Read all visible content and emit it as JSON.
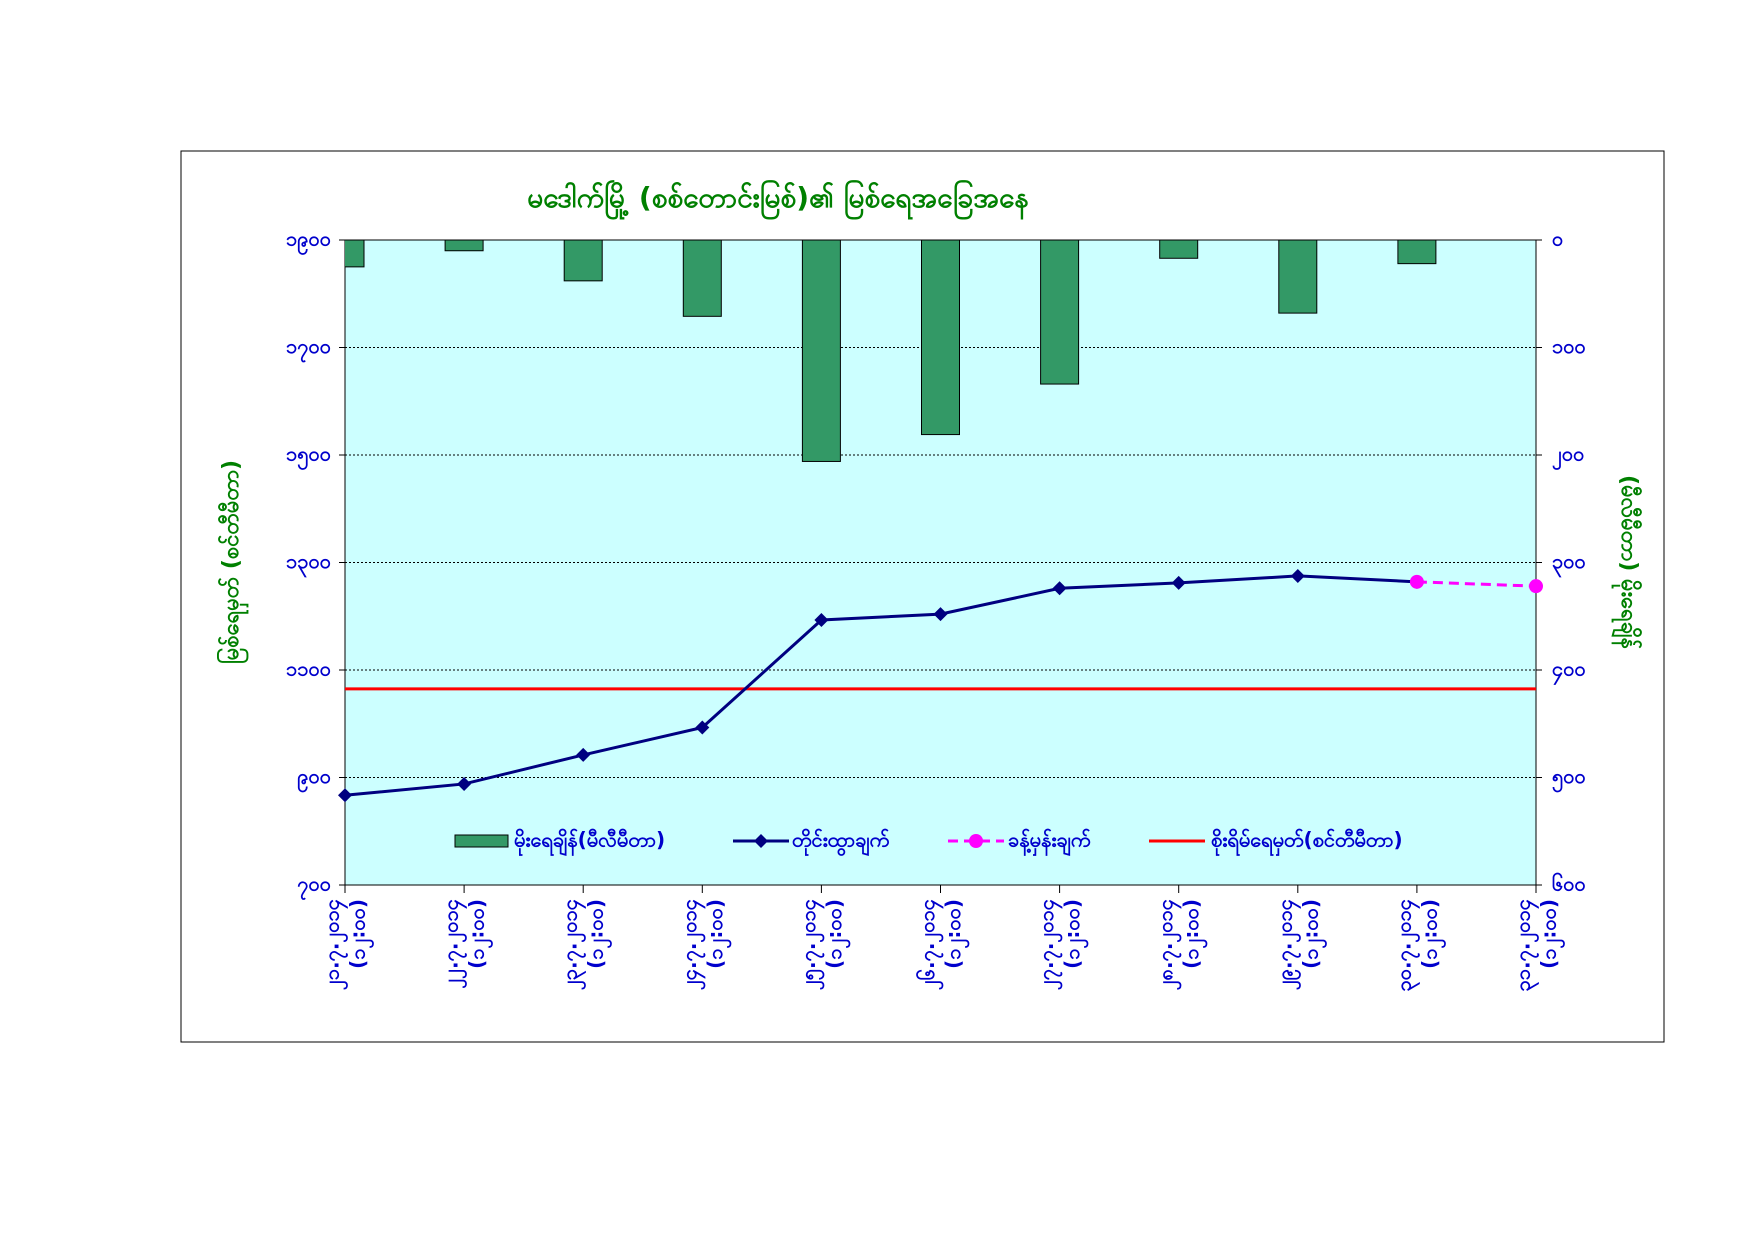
{
  "chart_data": {
    "type": "combo",
    "title": "မဒေါက်မြို့ (စစ်တောင်းမြစ်)၏ မြစ်ရေအခြေအနေ",
    "y_label": "မြစ်ရေမှတ် (စင်တီမီတာ)",
    "y2_label": "(မီလီမီတာ) မိုးရေချိန်",
    "categories": [
      "၂၁.၇.၂၀၁၄",
      "၂၂.၇.၂၀၁၄",
      "၂၃.၇.၂၀၁၄",
      "၂၄.၇.၂၀၁၄",
      "၂၅.၇.၂၀၁၄",
      "၂၆.၇.၂၀၁၄",
      "၂၇.၇.၂၀၁၄",
      "၂၈.၇.၂၀၁၄",
      "၂၉.၇.၂၀၁၄",
      "၃၀.၇.၂၀၁၄",
      "၃၁.၇.၂၀၁၄"
    ],
    "category_sublabels": [
      "(၁၂:၀၀)",
      "(၁၂:၀၀)",
      "(၁၂:၀၀)",
      "(၁၂:၀၀)",
      "(၁၂:၀၀)",
      "(၁၂:၀၀)",
      "(၁၂:၀၀)",
      "(၁၂:၀၀)",
      "(၁၂:၀၀)",
      "(၁၂:၀၀)",
      "(၁၂:၀၀)"
    ],
    "series": [
      {
        "name": "မိုးရေချိန်(မီလီမီတာ)",
        "kind": "bar",
        "axis": "y2",
        "color": "#339966",
        "values": [
          25,
          10,
          38,
          71,
          206,
          181,
          134,
          17,
          68,
          22,
          null
        ]
      },
      {
        "name": "တိုင်းထွာချက်",
        "kind": "line",
        "marker": "diamond",
        "color": "#000080",
        "values": [
          867,
          888,
          942,
          993,
          1193,
          1204,
          1252,
          1262,
          1275,
          1264,
          null
        ]
      },
      {
        "name": "ခန့်မှန်းချက်",
        "kind": "line",
        "marker": "circle",
        "dashed": true,
        "color": "#ff00ff",
        "values": [
          null,
          null,
          null,
          null,
          null,
          null,
          null,
          null,
          null,
          1264,
          1256
        ]
      }
    ],
    "danger_level": {
      "name": "စိုးရိမ်ရေမှတ်(စင်တီမီတာ)",
      "value": 1065,
      "color": "#ff0000"
    },
    "ylim": [
      700,
      1900
    ],
    "yticks": [
      {
        "value": 700,
        "label": "၇၀၀"
      },
      {
        "value": 900,
        "label": "၉၀၀"
      },
      {
        "value": 1100,
        "label": "၁၁၀၀"
      },
      {
        "value": 1300,
        "label": "၁၃၀၀"
      },
      {
        "value": 1500,
        "label": "၁၅၀၀"
      },
      {
        "value": 1700,
        "label": "၁၇၀၀"
      },
      {
        "value": 1900,
        "label": "၁၉၀၀"
      }
    ],
    "y2lim": [
      0,
      600
    ],
    "y2_inverted": true,
    "y2ticks": [
      {
        "value": 0,
        "label": "၀"
      },
      {
        "value": 100,
        "label": "၁၀၀"
      },
      {
        "value": 200,
        "label": "၂၀၀"
      },
      {
        "value": 300,
        "label": "၃၀၀"
      },
      {
        "value": 400,
        "label": "၄၀၀"
      },
      {
        "value": 500,
        "label": "၅၀၀"
      },
      {
        "value": 600,
        "label": "၆၀၀"
      }
    ],
    "grid": true,
    "plot_background": "#ccffff"
  }
}
